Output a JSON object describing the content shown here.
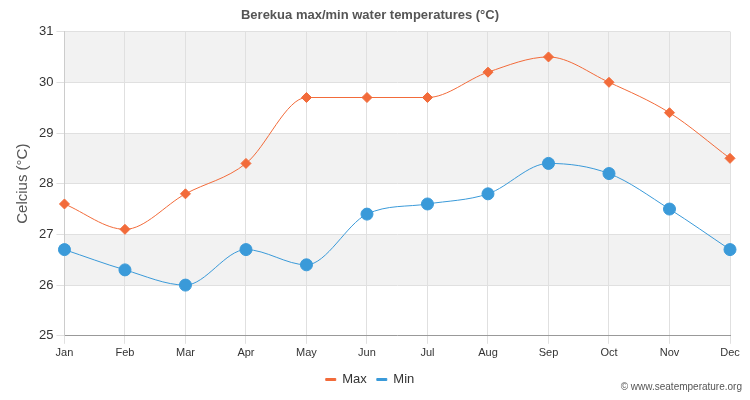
{
  "chart_data": {
    "type": "line",
    "title": "Berekua max/min water temperatures (°C)",
    "y_label": "Celcius (°C)",
    "annotation": "© www.seatemperature.org",
    "categories": [
      "Jan",
      "Feb",
      "Mar",
      "Apr",
      "May",
      "Jun",
      "Jul",
      "Aug",
      "Sep",
      "Oct",
      "Nov",
      "Dec"
    ],
    "series": [
      {
        "name": "Max",
        "color": "#f26b3a",
        "marker": "diamond",
        "values": [
          27.6,
          27.1,
          27.8,
          28.4,
          29.7,
          29.7,
          29.7,
          30.2,
          30.5,
          30.0,
          29.4,
          28.5
        ]
      },
      {
        "name": "Min",
        "color": "#3a9ad9",
        "marker": "circle",
        "values": [
          26.7,
          26.3,
          26.0,
          26.7,
          26.4,
          27.4,
          27.6,
          27.8,
          28.4,
          28.2,
          27.5,
          26.7
        ]
      }
    ],
    "ylim": [
      25,
      31
    ],
    "yticks": [
      25,
      26,
      27,
      28,
      29,
      30,
      31
    ],
    "grid": true,
    "legend": "bottom"
  }
}
